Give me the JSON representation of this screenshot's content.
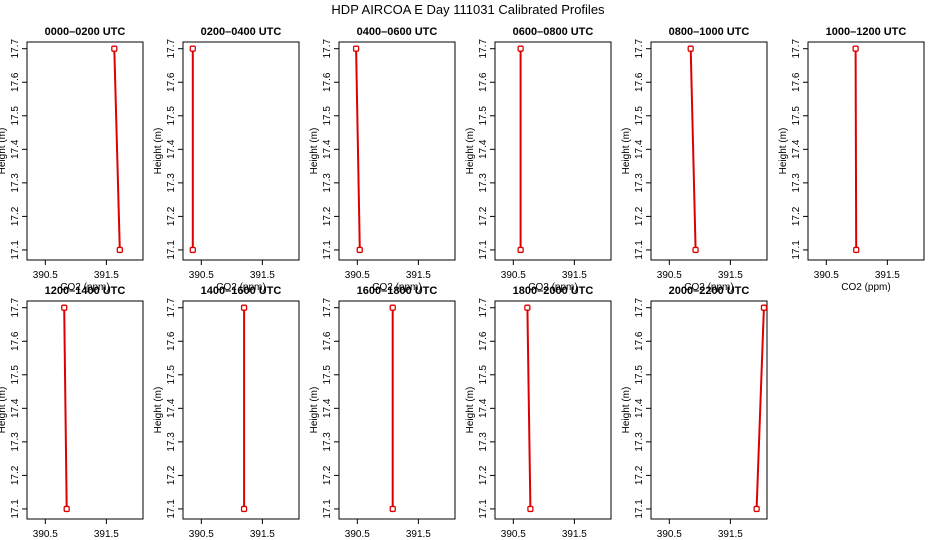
{
  "figure": {
    "title": "HDP AIRCOA E  Day 111031  Calibrated Profiles"
  },
  "colors": {
    "series": "#dd0000",
    "axis": "#000000",
    "background": "#ffffff"
  },
  "chart_data": [
    {
      "type": "line",
      "title": "0000–0200 UTC",
      "xlabel": "CO2 (ppm)",
      "ylabel": "Height (m)",
      "xlim": [
        390.2,
        392.1
      ],
      "ylim": [
        17.07,
        17.72
      ],
      "xticks": [
        390.5,
        391.5
      ],
      "yticks": [
        17.1,
        17.2,
        17.3,
        17.4,
        17.5,
        17.6,
        17.7
      ],
      "grid": false,
      "series": [
        {
          "x": [
            391.72,
            391.63
          ],
          "y": [
            17.1,
            17.7
          ]
        }
      ]
    },
    {
      "type": "line",
      "title": "0200–0400 UTC",
      "xlabel": "CO2 (ppm)",
      "ylabel": "Height (m)",
      "xlim": [
        390.2,
        392.1
      ],
      "ylim": [
        17.07,
        17.72
      ],
      "xticks": [
        390.5,
        391.5
      ],
      "yticks": [
        17.1,
        17.2,
        17.3,
        17.4,
        17.5,
        17.6,
        17.7
      ],
      "grid": false,
      "series": [
        {
          "x": [
            390.36,
            390.36
          ],
          "y": [
            17.1,
            17.7
          ]
        }
      ]
    },
    {
      "type": "line",
      "title": "0400–0600 UTC",
      "xlabel": "CO2 (ppm)",
      "ylabel": "Height (m)",
      "xlim": [
        390.2,
        392.1
      ],
      "ylim": [
        17.07,
        17.72
      ],
      "xticks": [
        390.5,
        391.5
      ],
      "yticks": [
        17.1,
        17.2,
        17.3,
        17.4,
        17.5,
        17.6,
        17.7
      ],
      "grid": false,
      "series": [
        {
          "x": [
            390.54,
            390.48
          ],
          "y": [
            17.1,
            17.7
          ]
        }
      ]
    },
    {
      "type": "line",
      "title": "0600–0800 UTC",
      "xlabel": "CO2 (ppm)",
      "ylabel": "Height (m)",
      "xlim": [
        390.2,
        392.1
      ],
      "ylim": [
        17.07,
        17.72
      ],
      "xticks": [
        390.5,
        391.5
      ],
      "yticks": [
        17.1,
        17.2,
        17.3,
        17.4,
        17.5,
        17.6,
        17.7
      ],
      "grid": false,
      "series": [
        {
          "x": [
            390.62,
            390.62
          ],
          "y": [
            17.1,
            17.7
          ]
        }
      ]
    },
    {
      "type": "line",
      "title": "0800–1000 UTC",
      "xlabel": "CO2 (ppm)",
      "ylabel": "Height (m)",
      "xlim": [
        390.2,
        392.1
      ],
      "ylim": [
        17.07,
        17.72
      ],
      "xticks": [
        390.5,
        391.5
      ],
      "yticks": [
        17.1,
        17.2,
        17.3,
        17.4,
        17.5,
        17.6,
        17.7
      ],
      "grid": false,
      "series": [
        {
          "x": [
            390.93,
            390.85
          ],
          "y": [
            17.1,
            17.7
          ]
        }
      ]
    },
    {
      "type": "line",
      "title": "1000–1200 UTC",
      "xlabel": "CO2 (ppm)",
      "ylabel": "Height (m)",
      "xlim": [
        390.2,
        392.1
      ],
      "ylim": [
        17.07,
        17.72
      ],
      "xticks": [
        390.5,
        391.5
      ],
      "yticks": [
        17.1,
        17.2,
        17.3,
        17.4,
        17.5,
        17.6,
        17.7
      ],
      "grid": false,
      "series": [
        {
          "x": [
            390.99,
            390.98
          ],
          "y": [
            17.1,
            17.7
          ]
        }
      ]
    },
    {
      "type": "line",
      "title": "1200–1400 UTC",
      "xlabel": "CO2 (ppm)",
      "ylabel": "Height (m)",
      "xlim": [
        390.2,
        392.1
      ],
      "ylim": [
        17.07,
        17.72
      ],
      "xticks": [
        390.5,
        391.5
      ],
      "yticks": [
        17.1,
        17.2,
        17.3,
        17.4,
        17.5,
        17.6,
        17.7
      ],
      "grid": false,
      "series": [
        {
          "x": [
            390.85,
            390.81
          ],
          "y": [
            17.1,
            17.7
          ]
        }
      ]
    },
    {
      "type": "line",
      "title": "1400–1600 UTC",
      "xlabel": "CO2 (ppm)",
      "ylabel": "Height (m)",
      "xlim": [
        390.2,
        392.1
      ],
      "ylim": [
        17.07,
        17.72
      ],
      "xticks": [
        390.5,
        391.5
      ],
      "yticks": [
        17.1,
        17.2,
        17.3,
        17.4,
        17.5,
        17.6,
        17.7
      ],
      "grid": false,
      "series": [
        {
          "x": [
            391.2,
            391.2
          ],
          "y": [
            17.1,
            17.7
          ]
        }
      ]
    },
    {
      "type": "line",
      "title": "1600–1800 UTC",
      "xlabel": "CO2 (ppm)",
      "ylabel": "Height (m)",
      "xlim": [
        390.2,
        392.1
      ],
      "ylim": [
        17.07,
        17.72
      ],
      "xticks": [
        390.5,
        391.5
      ],
      "yticks": [
        17.1,
        17.2,
        17.3,
        17.4,
        17.5,
        17.6,
        17.7
      ],
      "grid": false,
      "series": [
        {
          "x": [
            391.08,
            391.08
          ],
          "y": [
            17.1,
            17.7
          ]
        }
      ]
    },
    {
      "type": "line",
      "title": "1800–2000 UTC",
      "xlabel": "CO2 (ppm)",
      "ylabel": "Height (m)",
      "xlim": [
        390.2,
        392.1
      ],
      "ylim": [
        17.07,
        17.72
      ],
      "xticks": [
        390.5,
        391.5
      ],
      "yticks": [
        17.1,
        17.2,
        17.3,
        17.4,
        17.5,
        17.6,
        17.7
      ],
      "grid": false,
      "series": [
        {
          "x": [
            390.78,
            390.73
          ],
          "y": [
            17.1,
            17.7
          ]
        }
      ]
    },
    {
      "type": "line",
      "title": "2000–2200 UTC",
      "xlabel": "CO2 (ppm)",
      "ylabel": "Height (m)",
      "xlim": [
        390.2,
        392.1
      ],
      "ylim": [
        17.07,
        17.72
      ],
      "xticks": [
        390.5,
        391.5
      ],
      "yticks": [
        17.1,
        17.2,
        17.3,
        17.4,
        17.5,
        17.6,
        17.7
      ],
      "grid": false,
      "series": [
        {
          "x": [
            391.93,
            392.05
          ],
          "y": [
            17.1,
            17.7
          ]
        }
      ]
    }
  ]
}
